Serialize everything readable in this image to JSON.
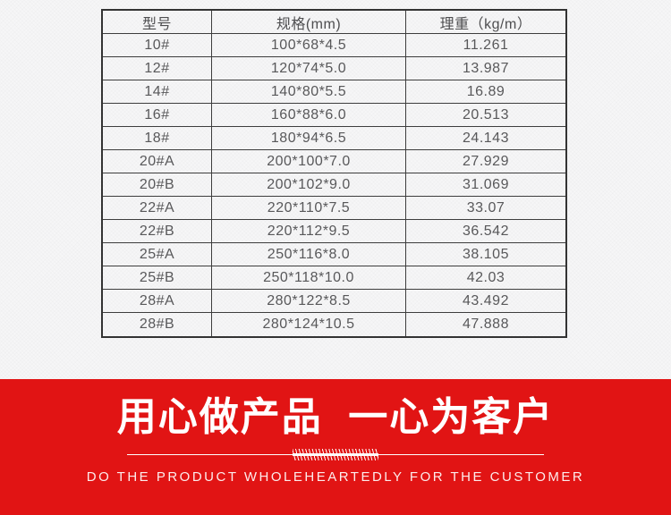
{
  "table": {
    "headers": [
      "型号",
      "规格(mm)",
      "理重（kg/m）"
    ],
    "rows": [
      {
        "model": "10#",
        "spec": "100*68*4.5",
        "weight": "11.261"
      },
      {
        "model": "12#",
        "spec": "120*74*5.0",
        "weight": "13.987"
      },
      {
        "model": "14#",
        "spec": "140*80*5.5",
        "weight": "16.89"
      },
      {
        "model": "16#",
        "spec": "160*88*6.0",
        "weight": "20.513"
      },
      {
        "model": "18#",
        "spec": "180*94*6.5",
        "weight": "24.143"
      },
      {
        "model": "20#A",
        "spec": "200*100*7.0",
        "weight": "27.929"
      },
      {
        "model": "20#B",
        "spec": "200*102*9.0",
        "weight": "31.069"
      },
      {
        "model": "22#A",
        "spec": "220*110*7.5",
        "weight": "33.07"
      },
      {
        "model": "22#B",
        "spec": "220*112*9.5",
        "weight": "36.542"
      },
      {
        "model": "25#A",
        "spec": "250*116*8.0",
        "weight": "38.105"
      },
      {
        "model": "25#B",
        "spec": "250*118*10.0",
        "weight": "42.03"
      },
      {
        "model": "28#A",
        "spec": "280*122*8.5",
        "weight": "43.492"
      },
      {
        "model": "28#B",
        "spec": "280*124*10.5",
        "weight": "47.888"
      }
    ]
  },
  "banner": {
    "headline": "用心做产品  一心为客户",
    "subline": "DO THE PRODUCT WHOLEHEARTEDLY FOR THE CUSTOMER",
    "background_color": "#e11414",
    "text_color": "#ffffff"
  },
  "colors": {
    "page_background": "#f6f6f7",
    "table_border": "#333333",
    "table_text": "#58585a"
  }
}
